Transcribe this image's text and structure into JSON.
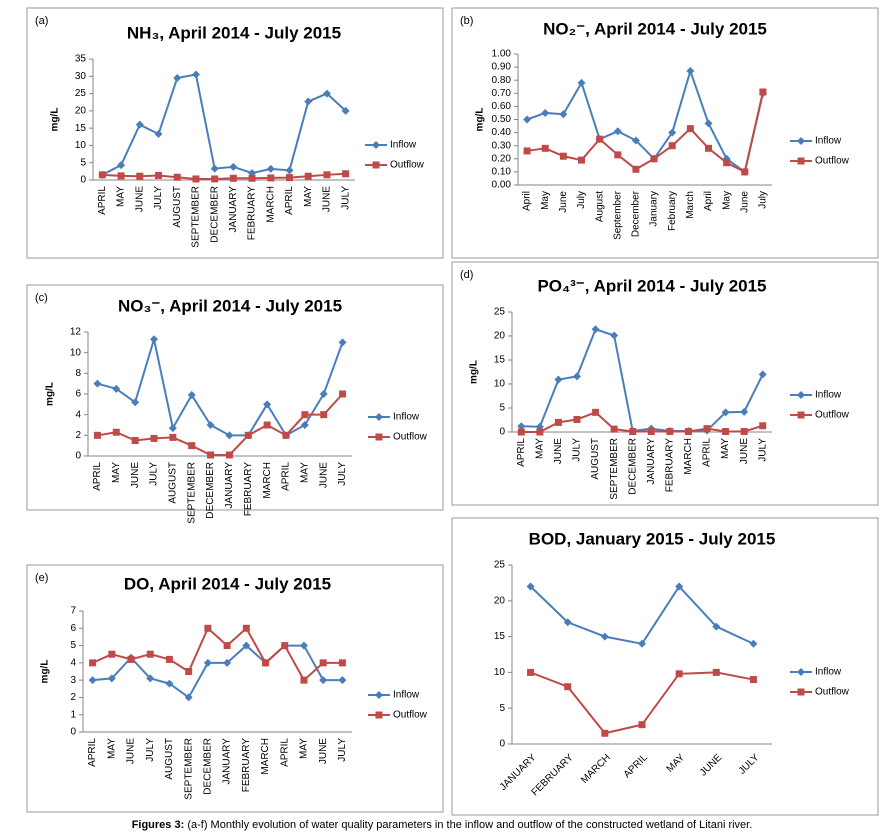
{
  "chart_data": [
    {
      "type": "line",
      "panel_label": "(a)",
      "title": "NH₃, April 2014 - July 2015",
      "ylabel": "mg/L",
      "categories": [
        "APRIL",
        "MAY",
        "JUNE",
        "JULY",
        "AUGUST",
        "SEPTEMBER",
        "DECEMBER",
        "JANUARY",
        "FEBRUARY",
        "MARCH",
        "APRIL",
        "MAY",
        "JUNE",
        "JULY"
      ],
      "series": [
        {
          "name": "Inflow",
          "color": "#4a7ebb",
          "marker": "diamond",
          "values": [
            1.5,
            4.3,
            16,
            13.3,
            29.5,
            30.5,
            3.3,
            3.8,
            2,
            3.2,
            2.8,
            22.7,
            25,
            20
          ]
        },
        {
          "name": "Outflow",
          "color": "#be4b48",
          "marker": "square",
          "values": [
            1.5,
            1.2,
            1.1,
            1.3,
            0.8,
            0.3,
            0.3,
            0.5,
            0.5,
            0.6,
            0.7,
            1.1,
            1.5,
            1.8
          ]
        }
      ],
      "ylim": [
        0,
        35
      ],
      "yticks": [
        0,
        5,
        10,
        15,
        20,
        25,
        30,
        35
      ],
      "label_rotation": 90
    },
    {
      "type": "line",
      "panel_label": "(b)",
      "title": "NO₂⁻, April 2014 - July 2015",
      "ylabel": "mg/L",
      "categories": [
        "April",
        "May",
        "June",
        "July",
        "August",
        "September",
        "December",
        "January",
        "February",
        "March",
        "April",
        "May",
        "June",
        "July"
      ],
      "series": [
        {
          "name": "Inflow",
          "color": "#4a7ebb",
          "marker": "diamond",
          "values": [
            0.5,
            0.55,
            0.54,
            0.78,
            0.35,
            0.41,
            0.34,
            0.2,
            0.4,
            0.87,
            0.47,
            0.2,
            0.1,
            0.7
          ]
        },
        {
          "name": "Outflow",
          "color": "#be4b48",
          "marker": "square",
          "values": [
            0.26,
            0.28,
            0.22,
            0.19,
            0.35,
            0.23,
            0.12,
            0.2,
            0.3,
            0.43,
            0.28,
            0.17,
            0.1,
            0.71
          ]
        }
      ],
      "ylim": [
        0,
        1
      ],
      "yticks": [
        {
          "value": 0,
          "label": "0.00"
        },
        {
          "value": 0.1,
          "label": "0.10"
        },
        {
          "value": 0.2,
          "label": "0.20"
        },
        {
          "value": 0.3,
          "label": "0.30"
        },
        {
          "value": 0.4,
          "label": "0.40"
        },
        {
          "value": 0.5,
          "label": "0.50"
        },
        {
          "value": 0.6,
          "label": "0.60"
        },
        {
          "value": 0.7,
          "label": "0.70"
        },
        {
          "value": 0.8,
          "label": "0.80"
        },
        {
          "value": 0.9,
          "label": "0.90"
        },
        {
          "value": 1,
          "label": "1.00"
        }
      ],
      "label_rotation": 90
    },
    {
      "type": "line",
      "panel_label": "(c)",
      "title": "NO₃⁻, April 2014 - July 2015",
      "ylabel": "mg/L",
      "categories": [
        "APRIL",
        "MAY",
        "JUNE",
        "JULY",
        "AUGUST",
        "SEPTEMBER",
        "DECEMBER",
        "JANUARY",
        "FEBRUARY",
        "MARCH",
        "APRIL",
        "MAY",
        "JUNE",
        "JULY"
      ],
      "series": [
        {
          "name": "Inflow",
          "color": "#4a7ebb",
          "marker": "diamond",
          "values": [
            7,
            6.5,
            5.2,
            11.3,
            2.7,
            5.9,
            3,
            2,
            2,
            5,
            2,
            3,
            6,
            11
          ]
        },
        {
          "name": "Outflow",
          "color": "#be4b48",
          "marker": "square",
          "values": [
            2,
            2.3,
            1.5,
            1.7,
            1.8,
            1,
            0.1,
            0.1,
            2,
            3,
            2,
            4,
            4,
            6
          ]
        }
      ],
      "ylim": [
        0,
        12
      ],
      "yticks": [
        0,
        2,
        4,
        6,
        8,
        10,
        12
      ],
      "label_rotation": 90
    },
    {
      "type": "line",
      "panel_label": "(d)",
      "title": "PO₄³⁻, April 2014 - July 2015",
      "ylabel": "mg/L",
      "categories": [
        "APRIL",
        "MAY",
        "JUNE",
        "JULY",
        "AUGUST",
        "SEPTEMBER",
        "DECEMBER",
        "JANUARY",
        "FEBRUARY",
        "MARCH",
        "APRIL",
        "MAY",
        "JUNE",
        "JULY"
      ],
      "series": [
        {
          "name": "Inflow",
          "color": "#4a7ebb",
          "marker": "diamond",
          "values": [
            1.2,
            1.1,
            10.9,
            11.6,
            21.4,
            20.1,
            0.2,
            0.7,
            0.2,
            0.2,
            0.3,
            4.1,
            4.2,
            12
          ]
        },
        {
          "name": "Outflow",
          "color": "#be4b48",
          "marker": "square",
          "values": [
            0,
            0,
            2,
            2.6,
            4.1,
            0.6,
            0.1,
            0.1,
            0.1,
            0.1,
            0.7,
            0.1,
            0.1,
            1.3
          ]
        }
      ],
      "ylim": [
        0,
        25
      ],
      "yticks": [
        0,
        5,
        10,
        15,
        20,
        25
      ],
      "label_rotation": 90
    },
    {
      "type": "line",
      "panel_label": "(e)",
      "title": "DO, April 2014 - July 2015",
      "ylabel": "mg/L",
      "categories": [
        "APRIL",
        "MAY",
        "JUNE",
        "JULY",
        "AUGUST",
        "SEPTEMBER",
        "DECEMBER",
        "JANUARY",
        "FEBRUARY",
        "MARCH",
        "APRIL",
        "MAY",
        "JUNE",
        "JULY"
      ],
      "series": [
        {
          "name": "Inflow",
          "color": "#4a7ebb",
          "marker": "diamond",
          "values": [
            3,
            3.1,
            4.3,
            3.1,
            2.8,
            2,
            4,
            4,
            5,
            4,
            5,
            5,
            3,
            3
          ]
        },
        {
          "name": "Outflow",
          "color": "#be4b48",
          "marker": "square",
          "values": [
            4,
            4.5,
            4.2,
            4.5,
            4.2,
            3.5,
            6,
            5,
            6,
            4,
            5,
            3,
            4,
            4
          ]
        }
      ],
      "ylim": [
        0,
        7
      ],
      "yticks": [
        0,
        1,
        2,
        3,
        4,
        5,
        6,
        7
      ],
      "label_rotation": 90
    },
    {
      "type": "line",
      "title": "BOD, January 2015 - July 2015",
      "categories": [
        "JANUARY",
        "FEBRUARY",
        "MARCH",
        "APRIL",
        "MAY",
        "JUNE",
        "JULY"
      ],
      "series": [
        {
          "name": "Inflow",
          "color": "#4a7ebb",
          "marker": "diamond",
          "values": [
            22,
            17,
            15,
            14,
            22,
            16.4,
            14
          ]
        },
        {
          "name": "Outflow",
          "color": "#be4b48",
          "marker": "square",
          "values": [
            10,
            8,
            1.5,
            2.7,
            9.8,
            10,
            9
          ]
        }
      ],
      "ylim": [
        0,
        25
      ],
      "yticks": [
        0,
        5,
        10,
        15,
        20,
        25
      ],
      "label_rotation": 45
    }
  ],
  "caption": {
    "label": "Figures 3:",
    "text": "(a-f) Monthly evolution of water quality parameters in the inflow and outflow of the constructed wetland of Litani river."
  }
}
